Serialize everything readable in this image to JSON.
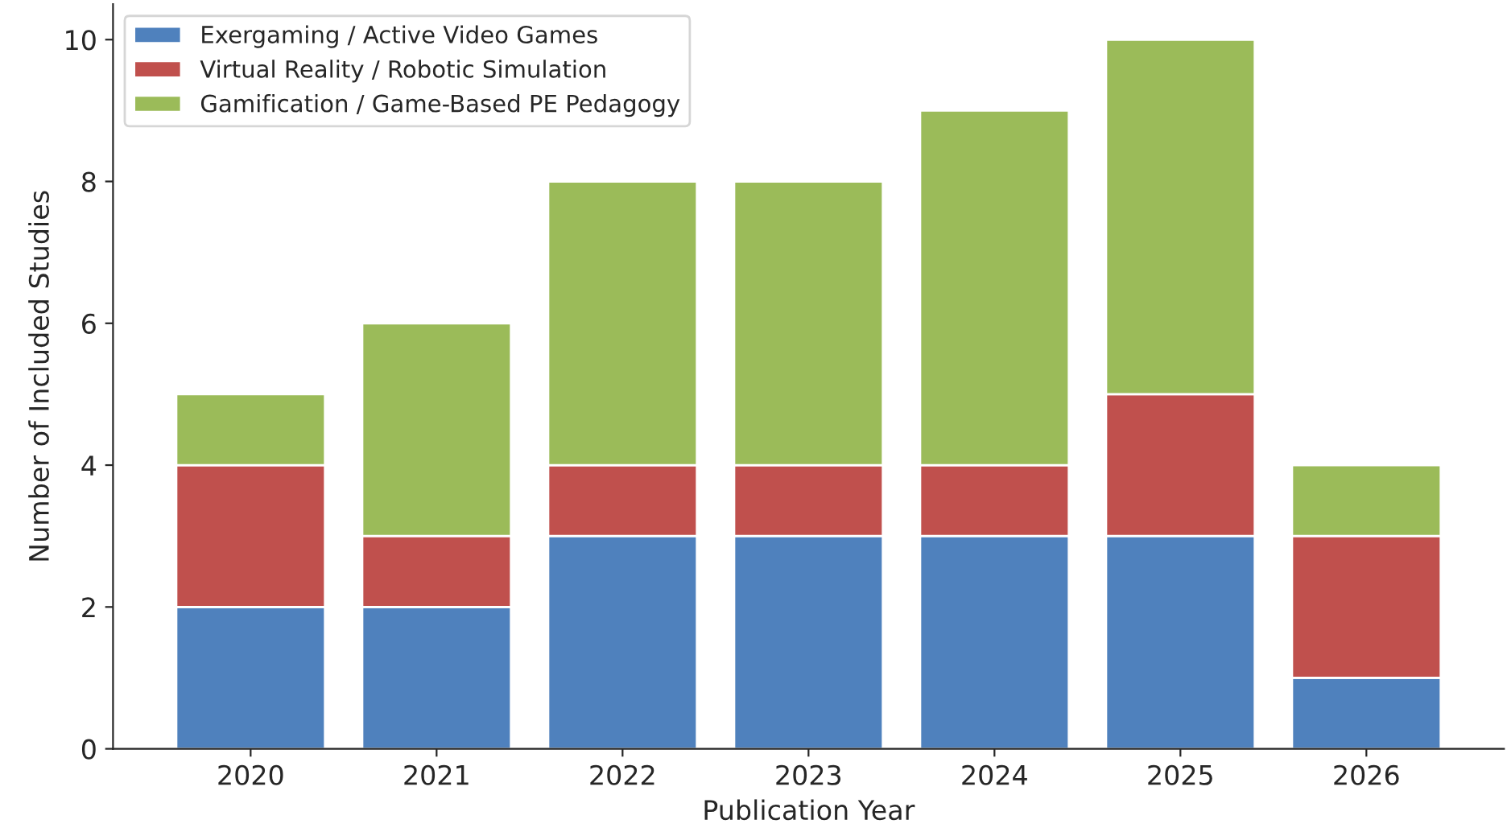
{
  "chart_data": {
    "type": "bar",
    "stacked": true,
    "xlabel": "Publication Year",
    "ylabel": "Number of Included Studies",
    "categories": [
      "2020",
      "2021",
      "2022",
      "2023",
      "2024",
      "2025",
      "2026"
    ],
    "series": [
      {
        "name": "Exergaming / Active Video Games",
        "color": "#4f81bd",
        "values": [
          2,
          2,
          3,
          3,
          3,
          3,
          1
        ]
      },
      {
        "name": "Virtual Reality / Robotic Simulation",
        "color": "#c0504d",
        "values": [
          2,
          1,
          1,
          1,
          1,
          2,
          2
        ]
      },
      {
        "name": "Gamification / Game-Based PE Pedagogy",
        "color": "#9bbb59",
        "values": [
          1,
          3,
          4,
          4,
          5,
          5,
          1
        ]
      }
    ],
    "ylim": [
      0,
      10.5
    ],
    "yticks": [
      0,
      2,
      4,
      6,
      8,
      10
    ],
    "grid": false,
    "legend": "top left"
  }
}
